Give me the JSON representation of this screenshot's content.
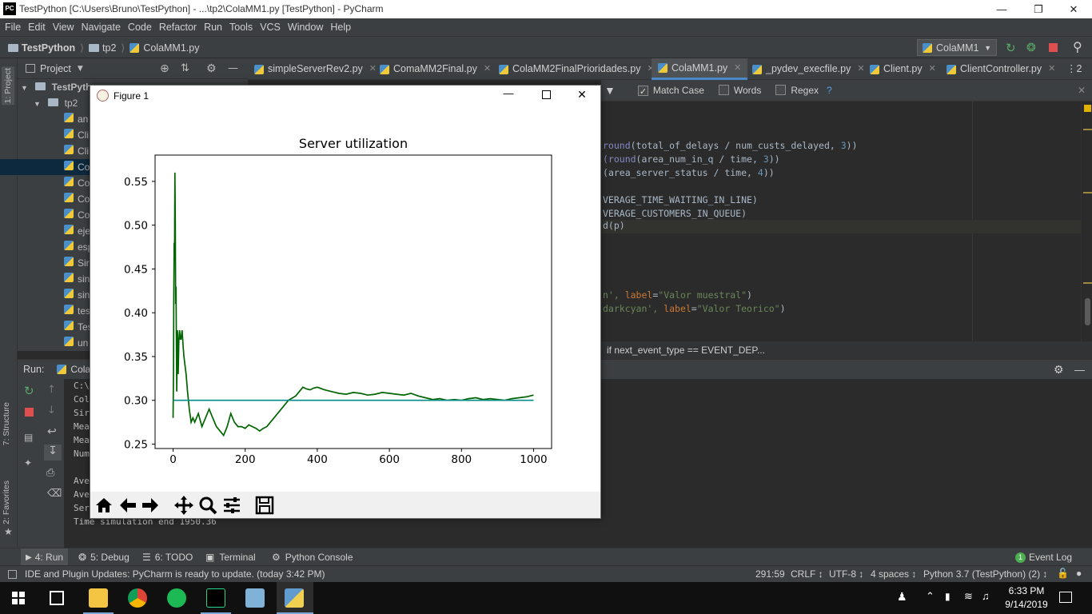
{
  "window": {
    "title": "TestPython [C:\\Users\\Bruno\\TestPython] - ...\\tp2\\ColaMM1.py [TestPython] - PyCharm",
    "logo": "PC"
  },
  "menu": [
    "File",
    "Edit",
    "View",
    "Navigate",
    "Code",
    "Refactor",
    "Run",
    "Tools",
    "VCS",
    "Window",
    "Help"
  ],
  "nav": {
    "project": "TestPython",
    "folder": "tp2",
    "file": "ColaMM1.py",
    "run_config": "ColaMM1"
  },
  "left_stripe": {
    "project_tab": "1: Project",
    "structure_tab": "7: Structure",
    "favorites_tab": "2: Favorites"
  },
  "project_panel": {
    "label": "Project",
    "root": "TestPyth",
    "folder": "tp2",
    "items": [
      "an",
      "Cli",
      "Cli",
      "Co",
      "Co",
      "Co",
      "Co",
      "eje",
      "esp",
      "Sir",
      "sin",
      "sin",
      "tes",
      "Tes",
      "un"
    ]
  },
  "editor_tabs": [
    {
      "label": "simpleServerRev2.py"
    },
    {
      "label": "ComaMM2Final.py"
    },
    {
      "label": "ColaMM2FinalPrioridades.py"
    },
    {
      "label": "ColaMM1.py"
    },
    {
      "label": "_pydev_execfile.py"
    },
    {
      "label": "Client.py"
    },
    {
      "label": "ClientController.py"
    }
  ],
  "tabs_overflow": "⋮2",
  "search": {
    "match_case": "Match Case",
    "words": "Words",
    "regex": "Regex",
    "help": "?"
  },
  "code_lines": [
    {
      "a": "round",
      "b": "(total_of_delays / num_custs_delayed, ",
      "c": "3",
      "d": "))"
    },
    {
      "a": "(round",
      "b": "(area_num_in_q / time, ",
      "c": "3",
      "d": "))"
    },
    {
      "a": "(",
      "b": "area_server_status / time, ",
      "c": "4",
      "d": "))"
    },
    {
      "a": "",
      "b": "VERAGE_TIME_WAITING_IN_LINE)",
      "c": "",
      "d": ""
    },
    {
      "a": "",
      "b": "VERAGE_CUSTOMERS_IN_QUEUE)",
      "c": "",
      "d": ""
    },
    {
      "a": "",
      "b": "d(p)",
      "c": "",
      "d": ""
    }
  ],
  "code_label_lines": [
    {
      "pre": "n', ",
      "kw": "label",
      "eq": "=",
      "str": "\"Valor muestral\"",
      "post": ")"
    },
    {
      "pre": "darkcyan', ",
      "kw": "label",
      "eq": "=",
      "str": "\"Valor Teorico\"",
      "post": ")"
    }
  ],
  "editor_breadcrumb": "if next_event_type == EVENT_DEP...",
  "run": {
    "label": "Run:",
    "config": "Cola",
    "console_lines": [
      "C:\\",
      "Col",
      "Sir",
      "Mea",
      "Mea",
      "Num",
      "",
      "Ave",
      "Ave",
      "Ser",
      "Time simulation end 1950.36"
    ]
  },
  "tool_tabs": [
    {
      "label": "4: Run"
    },
    {
      "label": "5: Debug"
    },
    {
      "label": "6: TODO"
    },
    {
      "label": "Terminal"
    },
    {
      "label": "Python Console"
    }
  ],
  "event_log": {
    "count": "1",
    "label": "Event Log"
  },
  "status": {
    "message": "IDE and Plugin Updates: PyCharm is ready to update. (today 3:42 PM)",
    "position": "291:59",
    "line_sep": "CRLF ↕",
    "encoding": "UTF-8 ↕",
    "indent": "4 spaces ↕",
    "interpreter": "Python 3.7 (TestPython) (2) ↕"
  },
  "taskbar": {
    "time": "6:33 PM",
    "date": "9/14/2019"
  },
  "figure": {
    "window_title": "Figure 1",
    "toolbar": [
      "home-icon",
      "back-icon",
      "forward-icon",
      "pan-icon",
      "zoom-icon",
      "configure-icon",
      "save-icon"
    ]
  },
  "chart_data": {
    "type": "line",
    "title": "Server utilization",
    "xlabel": "",
    "ylabel": "",
    "xlim": [
      -50,
      1050
    ],
    "ylim": [
      0.245,
      0.58
    ],
    "xticks": [
      0,
      200,
      400,
      600,
      800,
      1000
    ],
    "yticks": [
      0.25,
      0.3,
      0.35,
      0.4,
      0.45,
      0.5,
      0.55
    ],
    "xtick_labels": [
      "0",
      "200",
      "400",
      "600",
      "800",
      "1000"
    ],
    "ytick_labels": [
      "0.25",
      "0.30",
      "0.35",
      "0.40",
      "0.45",
      "0.50",
      "0.55"
    ],
    "series": [
      {
        "color": "#006400",
        "x": [
          0,
          1,
          2,
          3,
          4,
          5,
          6,
          7,
          8,
          9,
          10,
          12,
          14,
          16,
          18,
          20,
          22,
          25,
          28,
          30,
          33,
          36,
          40,
          45,
          50,
          55,
          60,
          70,
          80,
          90,
          100,
          110,
          120,
          130,
          140,
          150,
          160,
          170,
          180,
          190,
          200,
          210,
          220,
          230,
          240,
          250,
          260,
          270,
          280,
          290,
          300,
          320,
          340,
          350,
          360,
          370,
          380,
          390,
          400,
          420,
          440,
          460,
          480,
          500,
          520,
          540,
          560,
          580,
          600,
          620,
          640,
          660,
          680,
          700,
          720,
          740,
          760,
          780,
          800,
          820,
          840,
          860,
          880,
          900,
          920,
          940,
          960,
          980,
          990,
          1000
        ],
        "y": [
          0.28,
          0.33,
          0.42,
          0.48,
          0.46,
          0.56,
          0.5,
          0.41,
          0.43,
          0.37,
          0.31,
          0.38,
          0.33,
          0.37,
          0.38,
          0.37,
          0.37,
          0.38,
          0.36,
          0.35,
          0.34,
          0.33,
          0.31,
          0.29,
          0.275,
          0.28,
          0.275,
          0.285,
          0.27,
          0.28,
          0.29,
          0.28,
          0.27,
          0.265,
          0.26,
          0.27,
          0.285,
          0.275,
          0.27,
          0.27,
          0.268,
          0.272,
          0.27,
          0.268,
          0.265,
          0.268,
          0.27,
          0.275,
          0.28,
          0.285,
          0.29,
          0.3,
          0.305,
          0.31,
          0.315,
          0.313,
          0.312,
          0.314,
          0.315,
          0.312,
          0.31,
          0.308,
          0.307,
          0.309,
          0.308,
          0.306,
          0.307,
          0.309,
          0.308,
          0.307,
          0.306,
          0.308,
          0.305,
          0.303,
          0.301,
          0.302,
          0.3,
          0.301,
          0.3,
          0.302,
          0.303,
          0.301,
          0.302,
          0.301,
          0.3,
          0.302,
          0.303,
          0.304,
          0.305,
          0.306
        ]
      },
      {
        "color": "#008b8b",
        "x": [
          0,
          1000
        ],
        "y": [
          0.3,
          0.3
        ]
      }
    ]
  }
}
